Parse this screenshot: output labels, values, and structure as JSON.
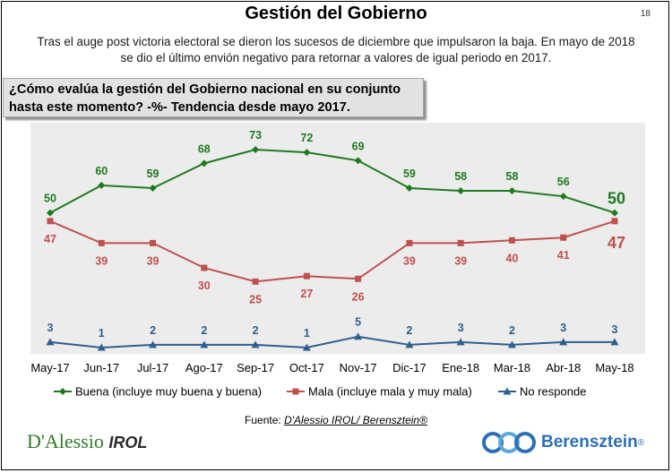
{
  "page": {
    "number": "18",
    "title": "Gestión del Gobierno",
    "subtitle_line1": "Tras el auge post victoria electoral se dieron los sucesos de diciembre que impulsaron la baja. En mayo de 2018",
    "subtitle_line2": "se dio el último envión negativo para retornar a valores de igual periodo en 2017.",
    "question_line1": "¿Cómo evalúa la gestión del Gobierno nacional en su conjunto",
    "question_line2": "hasta este momento? -%- Tendencia desde mayo 2017."
  },
  "source": {
    "prefix": "Fuente: ",
    "names": "D'Alessio IROL/ Berensztein®"
  },
  "brands": {
    "left_main": "D'Alessio",
    "left_sub": "IROL",
    "right_main": "Berensztein",
    "right_reg": "®"
  },
  "colors": {
    "buena": "#1e7a1e",
    "mala": "#c0504d",
    "no_responde": "#2e5f8e",
    "plot_background": "#ececec"
  },
  "chart_data": {
    "type": "line",
    "categories": [
      "May-17",
      "Jun-17",
      "Jul-17",
      "Ago-17",
      "Sep-17",
      "Oct-17",
      "Nov-17",
      "Dic-17",
      "Ene-18",
      "Mar-18",
      "Abr-18",
      "May-18"
    ],
    "series": [
      {
        "name": "Buena (incluye muy buena y buena)",
        "marker": "diamond",
        "values": [
          50,
          60,
          59,
          68,
          73,
          72,
          69,
          59,
          58,
          58,
          56,
          50
        ]
      },
      {
        "name": "Mala (incluye mala y muy mala)",
        "marker": "square",
        "values": [
          47,
          39,
          39,
          30,
          25,
          27,
          26,
          39,
          39,
          40,
          41,
          47
        ]
      },
      {
        "name": "No responde",
        "marker": "triangle",
        "values": [
          3,
          1,
          2,
          2,
          2,
          1,
          5,
          2,
          3,
          2,
          3,
          3
        ]
      }
    ],
    "grid": false,
    "legend_position": "bottom",
    "last_point_labels_emphasized": true
  }
}
